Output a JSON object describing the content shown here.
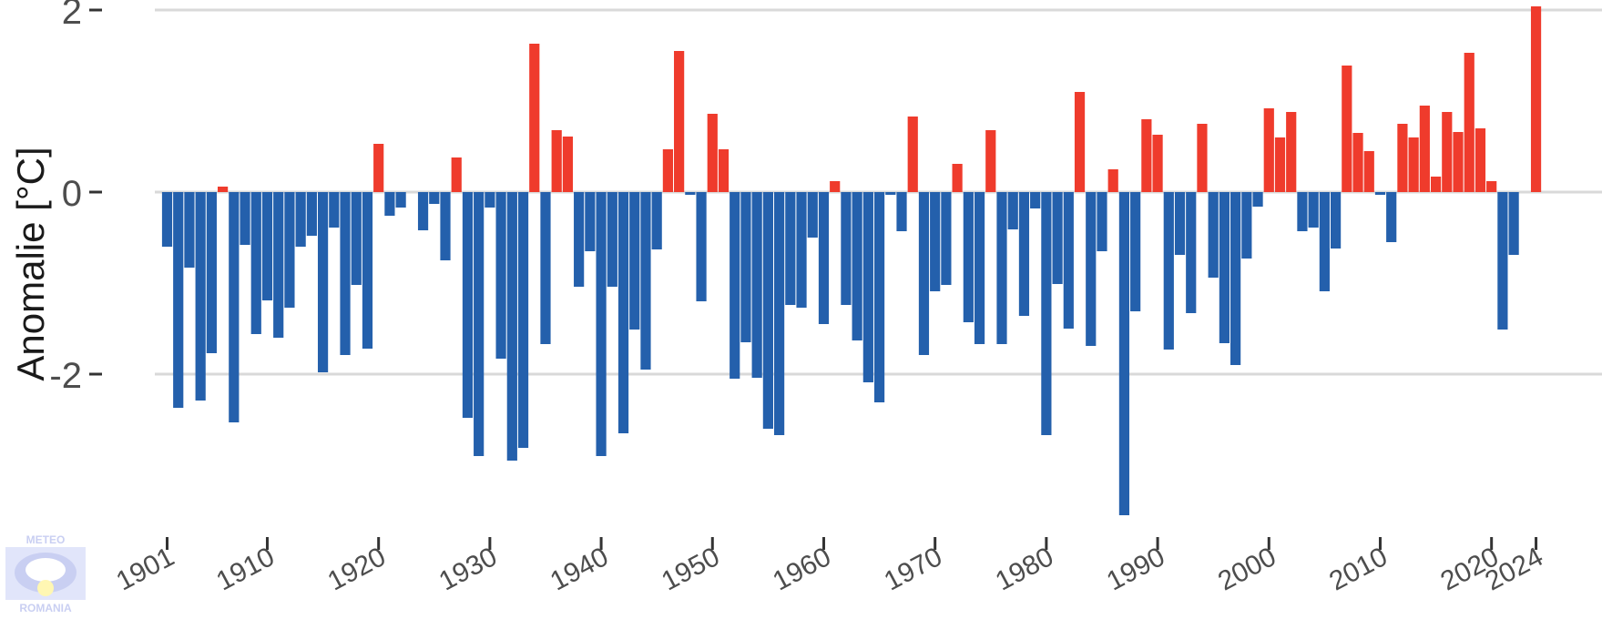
{
  "chart_data": {
    "type": "bar",
    "title": "",
    "xlabel": "",
    "ylabel": "Anomalie [°C]",
    "x": [
      1901,
      1902,
      1903,
      1904,
      1905,
      1906,
      1907,
      1908,
      1909,
      1910,
      1911,
      1912,
      1913,
      1914,
      1915,
      1916,
      1917,
      1918,
      1919,
      1920,
      1921,
      1922,
      1923,
      1924,
      1925,
      1926,
      1927,
      1928,
      1929,
      1930,
      1931,
      1932,
      1933,
      1934,
      1935,
      1936,
      1937,
      1938,
      1939,
      1940,
      1941,
      1942,
      1943,
      1944,
      1945,
      1946,
      1947,
      1948,
      1949,
      1950,
      1951,
      1952,
      1953,
      1954,
      1955,
      1956,
      1957,
      1958,
      1959,
      1960,
      1961,
      1962,
      1963,
      1964,
      1965,
      1966,
      1967,
      1968,
      1969,
      1970,
      1971,
      1972,
      1973,
      1974,
      1975,
      1976,
      1977,
      1978,
      1979,
      1980,
      1981,
      1982,
      1983,
      1984,
      1985,
      1986,
      1987,
      1988,
      1989,
      1990,
      1991,
      1992,
      1993,
      1994,
      1995,
      1996,
      1997,
      1998,
      1999,
      2000,
      2001,
      2002,
      2003,
      2004,
      2005,
      2006,
      2007,
      2008,
      2009,
      2010,
      2011,
      2012,
      2013,
      2014,
      2015,
      2016,
      2017,
      2018,
      2019,
      2020,
      2021,
      2022,
      2023,
      2024
    ],
    "values": [
      -0.6,
      -2.37,
      -0.83,
      -2.29,
      -1.77,
      0.06,
      -2.53,
      -0.58,
      -1.56,
      -1.19,
      -1.6,
      -1.27,
      -0.6,
      -0.48,
      -1.98,
      -0.39,
      -1.79,
      -1.02,
      -1.72,
      0.53,
      -0.26,
      -0.17,
      0.0,
      -0.42,
      -0.13,
      -0.75,
      0.38,
      -2.48,
      -2.9,
      -0.17,
      -1.83,
      -2.95,
      -2.81,
      1.63,
      -1.67,
      0.68,
      0.61,
      -1.04,
      -0.65,
      -2.9,
      -1.04,
      -2.65,
      -1.51,
      -1.95,
      -0.63,
      0.47,
      1.55,
      -0.03,
      -1.2,
      0.86,
      0.47,
      -2.05,
      -1.65,
      -2.04,
      -2.6,
      -2.67,
      -1.24,
      -1.27,
      -0.5,
      -1.45,
      0.12,
      -1.24,
      -1.63,
      -2.09,
      -2.31,
      -0.03,
      -0.43,
      0.83,
      -1.79,
      -1.09,
      -1.02,
      0.31,
      -1.43,
      -1.67,
      0.68,
      -1.67,
      -0.41,
      -1.36,
      -0.18,
      -2.67,
      -1.01,
      -1.5,
      1.1,
      -1.69,
      -0.65,
      0.25,
      -3.55,
      -1.31,
      0.8,
      0.63,
      -1.73,
      -0.69,
      -1.33,
      0.75,
      -0.94,
      -1.66,
      -1.9,
      -0.73,
      -0.16,
      0.92,
      0.6,
      0.88,
      -0.43,
      -0.39,
      -1.09,
      -0.62,
      1.39,
      0.65,
      0.45,
      -0.03,
      -0.55,
      0.75,
      0.6,
      0.95,
      0.17,
      0.88,
      0.66,
      1.53,
      0.7,
      0.12,
      -1.51,
      -0.69,
      0.0,
      2.04
    ],
    "positive_color": "#ef3b2c",
    "negative_color": "#2460ac",
    "ylim": [
      -3.6,
      2.05
    ],
    "yticks": [
      2,
      0,
      -2
    ],
    "ytick_labels": [
      "2",
      "0",
      "-2"
    ],
    "xticks": [
      1901,
      1910,
      1920,
      1930,
      1940,
      1950,
      1960,
      1970,
      1980,
      1990,
      2000,
      2010,
      2020,
      2024
    ],
    "xtick_labels": [
      "1901",
      "1910",
      "1920",
      "1930",
      "1940",
      "1950",
      "1960",
      "1970",
      "1980",
      "1990",
      "2000",
      "2010",
      "2020",
      "2024"
    ],
    "grid": "horizontal"
  },
  "logo": {
    "top_text": "METEO",
    "bottom_text": "ROMANIA",
    "color": "#c9cff2"
  }
}
